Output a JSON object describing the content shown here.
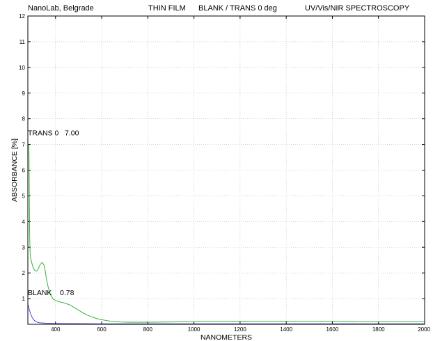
{
  "header": {
    "lab": "NanoLab, Belgrade",
    "sample": "THIN FILM",
    "mode": "BLANK / TRANS 0 deg",
    "method": "UV/Vis/NIR SPECTROSCOPY"
  },
  "chart_data": {
    "type": "line",
    "xlabel": "NANOMETERS",
    "ylabel": "ABSORBANCE   [%]",
    "xlim": [
      280,
      2000
    ],
    "ylim": [
      0,
      12
    ],
    "xticks": [
      400,
      600,
      800,
      1000,
      1200,
      1400,
      1600,
      1800,
      2000
    ],
    "yticks": [
      1,
      2,
      3,
      4,
      5,
      6,
      7,
      8,
      9,
      10,
      11,
      12
    ],
    "grid": true,
    "series": [
      {
        "name": "TRANS 0",
        "color": "#22aa22",
        "points": [
          [
            284,
            7.0
          ],
          [
            285,
            6.6
          ],
          [
            286,
            5.6
          ],
          [
            287,
            4.4
          ],
          [
            288,
            3.4
          ],
          [
            290,
            2.75
          ],
          [
            293,
            2.55
          ],
          [
            297,
            2.4
          ],
          [
            303,
            2.2
          ],
          [
            310,
            2.1
          ],
          [
            318,
            2.07
          ],
          [
            325,
            2.15
          ],
          [
            332,
            2.3
          ],
          [
            340,
            2.4
          ],
          [
            345,
            2.38
          ],
          [
            350,
            2.3
          ],
          [
            355,
            2.1
          ],
          [
            360,
            1.8
          ],
          [
            368,
            1.45
          ],
          [
            378,
            1.15
          ],
          [
            390,
            0.98
          ],
          [
            400,
            0.93
          ],
          [
            420,
            0.87
          ],
          [
            440,
            0.83
          ],
          [
            460,
            0.76
          ],
          [
            480,
            0.66
          ],
          [
            500,
            0.55
          ],
          [
            520,
            0.44
          ],
          [
            540,
            0.35
          ],
          [
            560,
            0.28
          ],
          [
            580,
            0.22
          ],
          [
            600,
            0.18
          ],
          [
            640,
            0.12
          ],
          [
            680,
            0.09
          ],
          [
            720,
            0.08
          ],
          [
            800,
            0.08
          ],
          [
            900,
            0.09
          ],
          [
            1000,
            0.1
          ],
          [
            1020,
            0.12
          ],
          [
            1100,
            0.12
          ],
          [
            1200,
            0.12
          ],
          [
            1400,
            0.12
          ],
          [
            1600,
            0.12
          ],
          [
            1660,
            0.11
          ],
          [
            1700,
            0.1
          ],
          [
            1800,
            0.1
          ],
          [
            2000,
            0.1
          ]
        ]
      },
      {
        "name": "BLANK",
        "color": "#3333dd",
        "points": [
          [
            280,
            0.78
          ],
          [
            283,
            0.7
          ],
          [
            287,
            0.55
          ],
          [
            292,
            0.4
          ],
          [
            298,
            0.28
          ],
          [
            305,
            0.18
          ],
          [
            315,
            0.1
          ],
          [
            330,
            0.06
          ],
          [
            360,
            0.04
          ],
          [
            420,
            0.03
          ],
          [
            600,
            0.02
          ],
          [
            1000,
            0.02
          ],
          [
            1400,
            0.02
          ],
          [
            1600,
            0.02
          ],
          [
            2000,
            0.02
          ]
        ]
      }
    ],
    "annotations": [
      {
        "label": "TRANS 0",
        "value": "7.00"
      },
      {
        "label": "BLANK",
        "value": "0.78"
      }
    ]
  }
}
